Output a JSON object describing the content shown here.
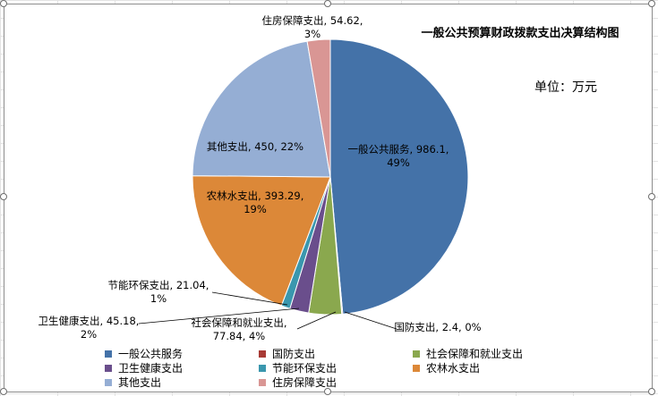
{
  "chart_data": {
    "type": "pie",
    "title": "一般公共预算财政拨款支出决算结构图",
    "unit_text": "单位：万元",
    "series": [
      {
        "name": "一般公共服务",
        "value": 986.1,
        "percent": "49%",
        "color": "#4472a8",
        "label_lines": [
          "一般公共服务, 986.1,",
          "49%"
        ]
      },
      {
        "name": "国防支出",
        "value": 2.4,
        "percent": "0%",
        "color": "#a83a35",
        "label_lines": [
          "国防支出, 2.4, 0%"
        ]
      },
      {
        "name": "社会保障和就业支出",
        "value": 77.84,
        "percent": "4%",
        "color": "#8aa84e",
        "label_lines": [
          "社会保障和就业支出,",
          "77.84, 4%"
        ]
      },
      {
        "name": "卫生健康支出",
        "value": 45.18,
        "percent": "2%",
        "color": "#6a4e8c",
        "label_lines": [
          "卫生健康支出, 45.18,",
          "2%"
        ]
      },
      {
        "name": "节能环保支出",
        "value": 21.04,
        "percent": "1%",
        "color": "#3a97ae",
        "label_lines": [
          "节能环保支出, 21.04,",
          "1%"
        ]
      },
      {
        "name": "农林水支出",
        "value": 393.29,
        "percent": "19%",
        "color": "#dc8838",
        "label_lines": [
          "农林水支出, 393.29,",
          "19%"
        ]
      },
      {
        "name": "其他支出",
        "value": 450,
        "percent": "22%",
        "color": "#95aed4",
        "label_lines": [
          "其他支出, 450, 22%"
        ]
      },
      {
        "name": "住房保障支出",
        "value": 54.62,
        "percent": "3%",
        "color": "#d99694",
        "label_lines": [
          "住房保障支出, 54.62,",
          "3%"
        ]
      }
    ],
    "legend_position": "bottom"
  }
}
